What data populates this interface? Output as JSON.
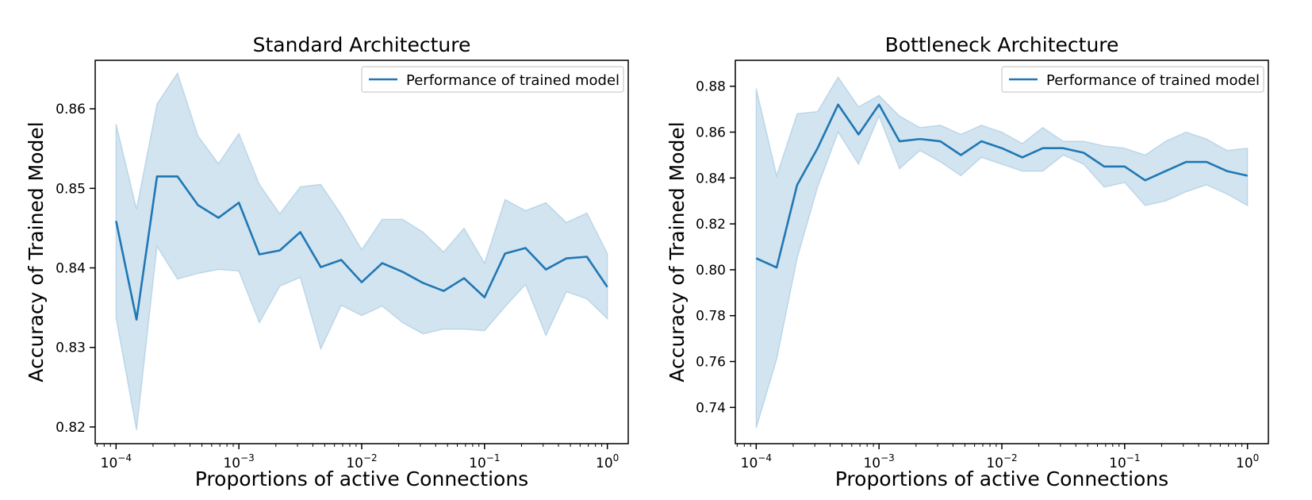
{
  "figure": {
    "background": "#ffffff",
    "line_color": "#1f77b4",
    "band_color": "#1f77b4"
  },
  "chart_data": [
    {
      "type": "line",
      "title": "Standard Architecture",
      "xlabel": "Proportions of active Connections",
      "ylabel": "Accuracy of Trained Model",
      "xscale": "log",
      "xlim_exponents": [
        -4.17,
        0.17
      ],
      "ylim": [
        0.8179,
        0.8661
      ],
      "yticks": [
        "0.82",
        "0.83",
        "0.84",
        "0.85",
        "0.86"
      ],
      "xticks": [
        "10^-4",
        "10^-3",
        "10^-2",
        "10^-1",
        "10^0"
      ],
      "grid": false,
      "legend_position": "upper right",
      "series": [
        {
          "name": "Performance of trained model",
          "x_exponents": [
            -4.0,
            -3.8333,
            -3.6667,
            -3.5,
            -3.3333,
            -3.1667,
            -3.0,
            -2.8333,
            -2.6667,
            -2.5,
            -2.3333,
            -2.1667,
            -2.0,
            -1.8333,
            -1.6667,
            -1.5,
            -1.3333,
            -1.1667,
            -1.0,
            -0.8333,
            -0.6667,
            -0.5,
            -0.3333,
            -0.1667,
            0.0
          ],
          "y": [
            0.8459,
            0.8335,
            0.8515,
            0.8515,
            0.8479,
            0.8463,
            0.8482,
            0.8417,
            0.8422,
            0.8445,
            0.8401,
            0.841,
            0.8382,
            0.8406,
            0.8395,
            0.8381,
            0.8371,
            0.8387,
            0.8363,
            0.8418,
            0.8425,
            0.8398,
            0.8412,
            0.8414,
            0.8376
          ],
          "lower": [
            0.8337,
            0.8196,
            0.8427,
            0.8386,
            0.8393,
            0.8398,
            0.8396,
            0.8331,
            0.8377,
            0.8388,
            0.8298,
            0.8353,
            0.834,
            0.8352,
            0.8331,
            0.8317,
            0.8323,
            0.8323,
            0.8321,
            0.8351,
            0.8379,
            0.8315,
            0.837,
            0.8361,
            0.8336
          ],
          "upper": [
            0.8581,
            0.8474,
            0.8606,
            0.8645,
            0.8566,
            0.8531,
            0.8569,
            0.8505,
            0.8468,
            0.8502,
            0.8505,
            0.8467,
            0.8423,
            0.8461,
            0.8461,
            0.8445,
            0.842,
            0.845,
            0.8406,
            0.8486,
            0.8472,
            0.8482,
            0.8457,
            0.8469,
            0.8418
          ]
        }
      ]
    },
    {
      "type": "line",
      "title": "Bottleneck Architecture",
      "xlabel": "Proportions of active Connections",
      "ylabel": "Accuracy of Trained Model",
      "xscale": "log",
      "xlim_exponents": [
        -4.17,
        0.17
      ],
      "ylim": [
        0.7242,
        0.8913
      ],
      "yticks": [
        "0.74",
        "0.76",
        "0.78",
        "0.80",
        "0.82",
        "0.84",
        "0.86",
        "0.88"
      ],
      "xticks": [
        "10^-4",
        "10^-3",
        "10^-2",
        "10^-1",
        "10^0"
      ],
      "grid": false,
      "legend_position": "upper right",
      "series": [
        {
          "name": "Performance of trained model",
          "x_exponents": [
            -4.0,
            -3.8333,
            -3.6667,
            -3.5,
            -3.3333,
            -3.1667,
            -3.0,
            -2.8333,
            -2.6667,
            -2.5,
            -2.3333,
            -2.1667,
            -2.0,
            -1.8333,
            -1.6667,
            -1.5,
            -1.3333,
            -1.1667,
            -1.0,
            -0.8333,
            -0.6667,
            -0.5,
            -0.3333,
            -0.1667,
            0.0
          ],
          "y": [
            0.805,
            0.801,
            0.837,
            0.853,
            0.872,
            0.859,
            0.872,
            0.856,
            0.857,
            0.856,
            0.85,
            0.856,
            0.853,
            0.849,
            0.853,
            0.853,
            0.851,
            0.845,
            0.845,
            0.839,
            0.843,
            0.847,
            0.847,
            0.843,
            0.841
          ],
          "lower": [
            0.731,
            0.761,
            0.805,
            0.836,
            0.86,
            0.846,
            0.867,
            0.844,
            0.852,
            0.847,
            0.841,
            0.849,
            0.846,
            0.843,
            0.843,
            0.85,
            0.846,
            0.836,
            0.838,
            0.828,
            0.83,
            0.834,
            0.837,
            0.833,
            0.828
          ],
          "upper": [
            0.879,
            0.841,
            0.868,
            0.869,
            0.884,
            0.871,
            0.876,
            0.867,
            0.862,
            0.863,
            0.859,
            0.863,
            0.86,
            0.855,
            0.862,
            0.856,
            0.856,
            0.854,
            0.853,
            0.85,
            0.856,
            0.86,
            0.857,
            0.852,
            0.853
          ]
        }
      ]
    }
  ]
}
